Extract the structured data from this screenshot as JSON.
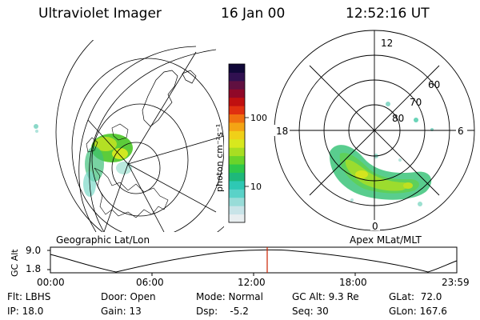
{
  "header": {
    "instrument": "Ultraviolet Imager",
    "date": "16 Jan 00",
    "time": "12:52:16 UT"
  },
  "colorbar": {
    "unit_label": "photon cm⁻²s⁻¹",
    "tick_high": "100",
    "tick_low": "10",
    "colors": [
      "#e8eef0",
      "#c8e4e8",
      "#98dcd8",
      "#5ad2c8",
      "#2ec8b4",
      "#1eb87a",
      "#2ec84a",
      "#6ad42a",
      "#a8de22",
      "#d8e81e",
      "#f0d018",
      "#f4a414",
      "#f07010",
      "#e03010",
      "#c01010",
      "#900828",
      "#601040",
      "#301050",
      "#100838"
    ]
  },
  "left_map": {
    "caption": "Geographic Lat/Lon"
  },
  "right_map": {
    "caption": "Apex MLat/MLT",
    "mlt_labels": {
      "top": "12",
      "left": "18",
      "right": "6",
      "bottom": "0"
    },
    "mlat_labels": [
      "60",
      "70",
      "80"
    ]
  },
  "timeline": {
    "ylabel": "GC Alt",
    "y_top": "9.0",
    "y_bottom": "1.8",
    "x_ticks": [
      "00:00",
      "06:00",
      "12:00",
      "18:00",
      "23:59"
    ],
    "accent": "#cc2200"
  },
  "info": {
    "flt": "Flt: LBHS",
    "ip": "IP: 18.0",
    "door": "Door: Open",
    "gain": "Gain: 13",
    "mode": "Mode: Normal",
    "dsp": "Dsp:    -5.2",
    "gcalt": "GC Alt: 9.3 Re",
    "seq": "Seq: 30",
    "glat": "GLat:  72.0",
    "glon": "GLon: 167.6"
  }
}
